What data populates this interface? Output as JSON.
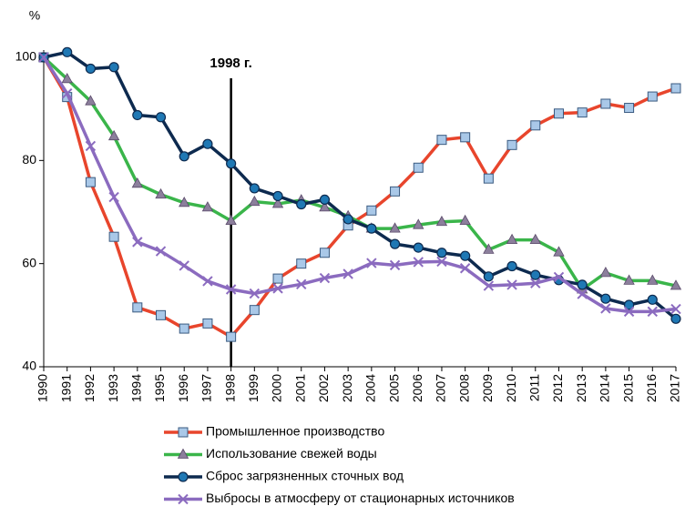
{
  "chart_data": {
    "type": "line",
    "y_label": "%",
    "categories": [
      "1990",
      "1991",
      "1992",
      "1993",
      "1994",
      "1995",
      "1996",
      "1997",
      "1998",
      "1999",
      "2000",
      "2001",
      "2002",
      "2003",
      "2004",
      "2005",
      "2006",
      "2007",
      "2008",
      "2009",
      "2010",
      "2011",
      "2012",
      "2013",
      "2014",
      "2015",
      "2016",
      "2017"
    ],
    "series": [
      {
        "name": "Промышленное производство",
        "color": "#e8452c",
        "marker": "square",
        "values": [
          100,
          92.3,
          75.8,
          65.2,
          51.5,
          50,
          47.4,
          48.4,
          45.8,
          51,
          57.1,
          60,
          62.1,
          67.4,
          70.3,
          74,
          78.6,
          84,
          84.5,
          76.5,
          83,
          86.8,
          89.1,
          89.3,
          91,
          90.2,
          92.4,
          94
        ]
      },
      {
        "name": "Использование свежей воды",
        "color": "#3ab54a",
        "marker": "triangle",
        "values": [
          100,
          95.8,
          91.5,
          84.7,
          75.5,
          73.4,
          71.8,
          70.9,
          68.3,
          72,
          71.6,
          72.3,
          70.9,
          69.2,
          66.8,
          66.8,
          67.5,
          68.1,
          68.3,
          62.7,
          64.6,
          64.6,
          62.2,
          55,
          58.2,
          56.7,
          56.7,
          55.7
        ]
      },
      {
        "name": "Сброс загрязненных сточных вод",
        "color": "#0d2a4f",
        "marker": "circle",
        "values": [
          100,
          101,
          97.8,
          98.1,
          88.8,
          88.4,
          80.8,
          83.2,
          79.4,
          74.6,
          73.1,
          71.5,
          72.4,
          68.6,
          66.8,
          63.8,
          63.1,
          62.1,
          61.5,
          57.5,
          59.5,
          57.8,
          56.8,
          55.9,
          53.2,
          52,
          53,
          49.3
        ]
      },
      {
        "name": "Выбросы в атмосферу от стационарных источников",
        "color": "#8b6bbf",
        "marker": "x",
        "values": [
          100,
          93,
          82.8,
          72.9,
          64.2,
          62.4,
          59.6,
          56.6,
          55,
          54.2,
          55.2,
          56,
          57.2,
          58,
          60.1,
          59.7,
          60.3,
          60.4,
          59.1,
          55.7,
          55.9,
          56.2,
          57.4,
          54.1,
          51.3,
          50.7,
          50.7,
          51.2
        ]
      }
    ],
    "ylim": [
      40,
      100
    ],
    "yticks": [
      40,
      60,
      80,
      100
    ],
    "grid": false,
    "annotation": {
      "text": "1998 г.",
      "x": "1998"
    },
    "legend": "bottom"
  }
}
